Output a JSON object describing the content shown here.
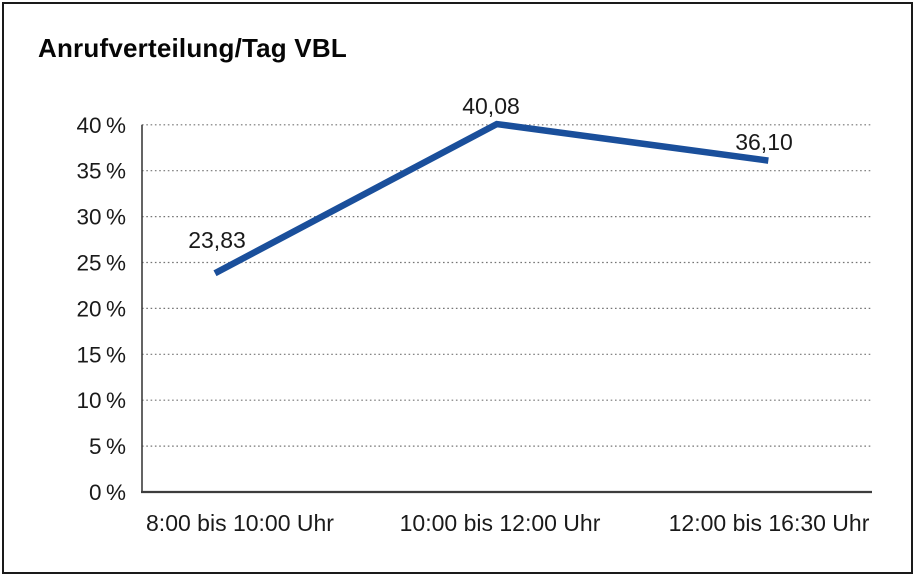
{
  "chart_data": {
    "type": "line",
    "title": "Anrufverteilung/Tag VBL",
    "categories": [
      "8:00 bis 10:00 Uhr",
      "10:00 bis 12:00 Uhr",
      "12:00 bis 16:30 Uhr"
    ],
    "series": [
      {
        "name": "Anrufverteilung",
        "values": [
          23.83,
          40.08,
          36.1
        ],
        "data_labels": [
          "23,83",
          "40,08",
          "36,10"
        ]
      }
    ],
    "xlabel": "",
    "ylabel": "",
    "ylim": [
      0,
      40
    ],
    "ytick_step": 5,
    "ytick_labels": [
      "0 %",
      "5 %",
      "10 %",
      "15 %",
      "20 %",
      "25 %",
      "30 %",
      "35 %",
      "40 %"
    ],
    "grid": "horizontal-dotted",
    "legend": "none",
    "colors": {
      "line": "#1a4f9b",
      "text": "#1a1a1a",
      "gridline": "#757575",
      "axis": "#3d3d3d"
    }
  }
}
